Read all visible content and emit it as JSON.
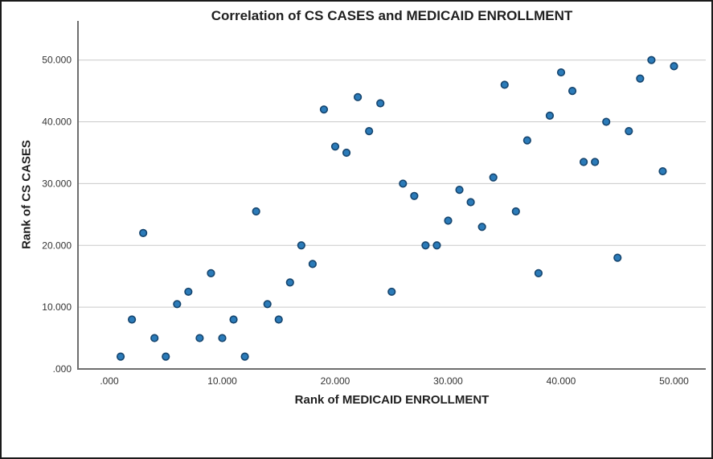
{
  "chart_data": {
    "type": "scatter",
    "title": "Correlation of CS CASES and MEDICAID ENROLLMENT",
    "xlabel": "Rank of MEDICAID ENROLLMENT",
    "ylabel": "Rank of CS CASES",
    "xlim": [
      -2.8,
      52.8
    ],
    "ylim": [
      -3.5,
      56.3
    ],
    "x_ticks": [
      0,
      10,
      20,
      30,
      40,
      50
    ],
    "y_ticks": [
      0,
      10,
      20,
      30,
      40,
      50
    ],
    "x_tick_labels": [
      ".000",
      "10.000",
      "20.000",
      "30.000",
      "40.000",
      "50.000"
    ],
    "y_tick_labels": [
      ".000",
      "10.000",
      "20.000",
      "30.000",
      "40.000",
      "50.000"
    ],
    "grid": "horizontal-only",
    "legend": "none",
    "marker": "circle",
    "points": [
      [
        1,
        2
      ],
      [
        2,
        8
      ],
      [
        3,
        22
      ],
      [
        4,
        5
      ],
      [
        5,
        2
      ],
      [
        6,
        10.5
      ],
      [
        7,
        12.5
      ],
      [
        8,
        5
      ],
      [
        9,
        15.5
      ],
      [
        10,
        5
      ],
      [
        11,
        8
      ],
      [
        12,
        2
      ],
      [
        13,
        25.5
      ],
      [
        14,
        10.5
      ],
      [
        15,
        8
      ],
      [
        16,
        14
      ],
      [
        17,
        20
      ],
      [
        18,
        17
      ],
      [
        19,
        42
      ],
      [
        20,
        36
      ],
      [
        21,
        35
      ],
      [
        22,
        44
      ],
      [
        23,
        38.5
      ],
      [
        24,
        43
      ],
      [
        25,
        12.5
      ],
      [
        26,
        30
      ],
      [
        27,
        28
      ],
      [
        28,
        20
      ],
      [
        29,
        20
      ],
      [
        30,
        24
      ],
      [
        31,
        29
      ],
      [
        32,
        27
      ],
      [
        33,
        23
      ],
      [
        34,
        31
      ],
      [
        35,
        46
      ],
      [
        36,
        25.5
      ],
      [
        37,
        37
      ],
      [
        38,
        15.5
      ],
      [
        39,
        41
      ],
      [
        40,
        48
      ],
      [
        41,
        45
      ],
      [
        42,
        33.5
      ],
      [
        43,
        33.5
      ],
      [
        44,
        40
      ],
      [
        45,
        18
      ],
      [
        46,
        38.5
      ],
      [
        47,
        47
      ],
      [
        48,
        50
      ],
      [
        49,
        32
      ],
      [
        50,
        49
      ]
    ]
  },
  "colors": {
    "marker_fill": "#2B7BB9",
    "marker_stroke": "#16456E",
    "gridline": "#C9C9C9",
    "axis_line": "#6E6E6E",
    "tick_text": "#333333",
    "title_text": "#1F1F1F",
    "border": "#1A1A1A"
  }
}
